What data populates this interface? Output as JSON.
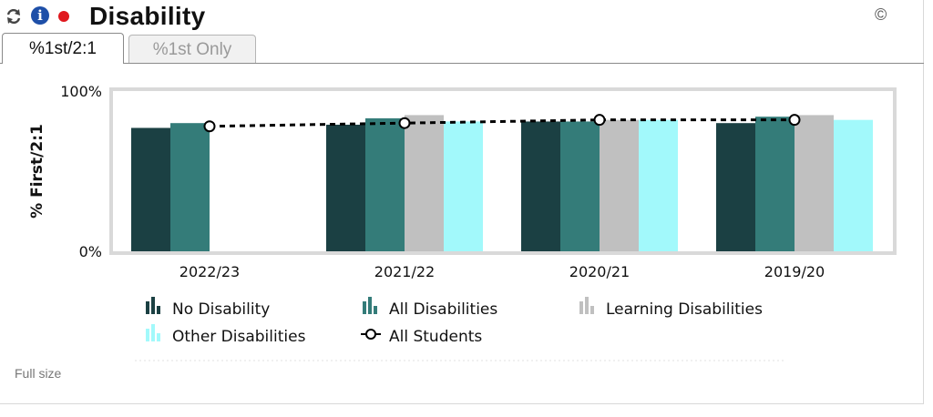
{
  "header": {
    "title": "Disability",
    "copyright": "©",
    "icons": [
      "refresh-icon",
      "info-icon",
      "record-dot-icon"
    ],
    "info_glyph": "i"
  },
  "tabs": [
    {
      "label": "%1st/2:1",
      "active": true
    },
    {
      "label": "%1st Only",
      "active": false
    }
  ],
  "footer": {
    "full_size_label": "Full size"
  },
  "colors": {
    "no_disability": "#1b4043",
    "all_disabilities": "#347c79",
    "learning_disabilities": "#c0c0c0",
    "other_disabilities": "#a2f9fb",
    "all_students": "#000000"
  },
  "chart_data": {
    "type": "bar",
    "title": "",
    "xlabel": "",
    "ylabel": "% First/2:1",
    "ylim": [
      0,
      100
    ],
    "y_tick_labels": [
      "100%",
      "0%"
    ],
    "categories": [
      "2022/23",
      "2021/22",
      "2020/21",
      "2019/20"
    ],
    "series": [
      {
        "name": "No Disability",
        "type": "bar",
        "values": [
          77,
          79,
          81,
          80
        ]
      },
      {
        "name": "All Disabilities",
        "type": "bar",
        "values": [
          80,
          83,
          81,
          84
        ]
      },
      {
        "name": "Learning Disabilities",
        "type": "bar",
        "values": [
          null,
          85,
          82,
          85
        ]
      },
      {
        "name": "Other Disabilities",
        "type": "bar",
        "values": [
          null,
          81,
          82,
          82
        ]
      },
      {
        "name": "All Students",
        "type": "line",
        "values": [
          78,
          80,
          82,
          82
        ]
      }
    ],
    "legend_position": "bottom",
    "grid": false
  }
}
